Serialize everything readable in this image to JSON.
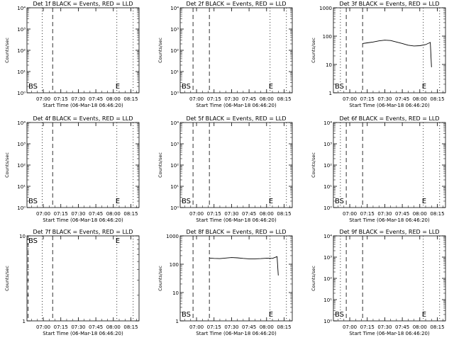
{
  "chart_data": [
    {
      "type": "line",
      "title": "Det 1f BLACK = Events, RED = LLD",
      "ylabel": "Counts/sec",
      "xlabel": "Start Time (06-Mar-18 06:46:20)",
      "yscale": "log",
      "yticks": [
        "10⁰",
        "10¹",
        "10²",
        "10³",
        "10⁴"
      ],
      "xticks": [
        "07:00",
        "07:15",
        "07:30",
        "07:45",
        "08:00",
        "08:15"
      ],
      "markers": [
        "BS",
        "E"
      ],
      "vlines": [
        {
          "style": "dotted",
          "x": "06:59"
        },
        {
          "style": "dashed",
          "x": "07:08"
        },
        {
          "style": "dotted",
          "x": "08:03"
        },
        {
          "style": "dotted",
          "x": "08:17"
        }
      ],
      "series": []
    },
    {
      "type": "line",
      "title": "Det 2f BLACK = Events, RED = LLD",
      "ylabel": "Counts/sec",
      "xlabel": "Start Time (06-Mar-18 06:46:20)",
      "yscale": "log",
      "yticks": [
        "10⁰",
        "10¹",
        "10²",
        "10³",
        "10⁴"
      ],
      "xticks": [
        "07:00",
        "07:15",
        "07:30",
        "07:45",
        "08:00",
        "08:15"
      ],
      "markers": [
        "BS",
        "E"
      ],
      "vlines": [
        {
          "style": "dashed",
          "x": "06:57"
        },
        {
          "style": "dashed",
          "x": "07:11"
        },
        {
          "style": "dotted",
          "x": "08:03"
        },
        {
          "style": "dotted",
          "x": "08:17"
        }
      ],
      "series": []
    },
    {
      "type": "line",
      "title": "Det 3f BLACK = Events, RED = LLD",
      "ylabel": "Counts/sec",
      "xlabel": "Start Time (06-Mar-18 06:46:20)",
      "yscale": "log",
      "yticks": [
        "1",
        "10",
        "100",
        "1000"
      ],
      "xticks": [
        "07:00",
        "07:15",
        "07:30",
        "07:45",
        "08:00",
        "08:15"
      ],
      "markers": [
        "BS",
        "E"
      ],
      "vlines": [
        {
          "style": "dotted",
          "x": "06:52"
        },
        {
          "style": "dashed",
          "x": "06:57"
        },
        {
          "style": "dashed",
          "x": "07:11"
        },
        {
          "style": "dotted",
          "x": "08:03"
        },
        {
          "style": "dotted",
          "x": "08:17"
        }
      ],
      "series": [
        {
          "x": [
            "07:11",
            "07:15",
            "07:20",
            "07:25",
            "07:30",
            "07:35",
            "07:40",
            "07:45",
            "07:50",
            "07:55",
            "08:00",
            "08:05",
            "08:09",
            "08:10"
          ],
          "values": [
            55,
            58,
            62,
            68,
            72,
            70,
            62,
            55,
            48,
            45,
            46,
            50,
            60,
            8
          ]
        }
      ]
    },
    {
      "type": "line",
      "title": "Det 4f BLACK = Events, RED = LLD",
      "ylabel": "Counts/sec",
      "xlabel": "Start Time (06-Mar-18 06:46:20)",
      "yscale": "log",
      "yticks": [
        "10⁰",
        "10¹",
        "10²",
        "10³",
        "10⁴"
      ],
      "xticks": [
        "07:00",
        "07:15",
        "07:30",
        "07:45",
        "08:00",
        "08:15"
      ],
      "markers": [
        "BS",
        "E"
      ],
      "vlines": [
        {
          "style": "dotted",
          "x": "06:59"
        },
        {
          "style": "dashed",
          "x": "07:08"
        },
        {
          "style": "dotted",
          "x": "08:03"
        },
        {
          "style": "dotted",
          "x": "08:17"
        }
      ],
      "series": []
    },
    {
      "type": "line",
      "title": "Det 5f BLACK = Events, RED = LLD",
      "ylabel": "Counts/sec",
      "xlabel": "Start Time (06-Mar-18 06:46:20)",
      "yscale": "log",
      "yticks": [
        "10⁰",
        "10¹",
        "10²",
        "10³",
        "10⁴"
      ],
      "xticks": [
        "07:00",
        "07:15",
        "07:30",
        "07:45",
        "08:00",
        "08:15"
      ],
      "markers": [
        "BS",
        "E"
      ],
      "vlines": [
        {
          "style": "dashed",
          "x": "06:57"
        },
        {
          "style": "dashed",
          "x": "07:11"
        },
        {
          "style": "dotted",
          "x": "08:03"
        },
        {
          "style": "dotted",
          "x": "08:17"
        }
      ],
      "series": []
    },
    {
      "type": "line",
      "title": "Det 6f BLACK = Events, RED = LLD",
      "ylabel": "Counts/sec",
      "xlabel": "Start Time (06-Mar-18 06:46:20)",
      "yscale": "log",
      "yticks": [
        "10⁰",
        "10¹",
        "10²",
        "10³",
        "10⁴"
      ],
      "xticks": [
        "07:00",
        "07:15",
        "07:30",
        "07:45",
        "08:00",
        "08:15"
      ],
      "markers": [
        "BS",
        "E"
      ],
      "vlines": [
        {
          "style": "dotted",
          "x": "06:52"
        },
        {
          "style": "dashed",
          "x": "06:57"
        },
        {
          "style": "dashed",
          "x": "07:11"
        },
        {
          "style": "dotted",
          "x": "08:03"
        },
        {
          "style": "dotted",
          "x": "08:17"
        }
      ],
      "series": []
    },
    {
      "type": "line",
      "title": "Det 7f BLACK = Events, RED = LLD",
      "ylabel": "Counts/sec",
      "xlabel": "Start Time (06-Mar-18 06:46:20)",
      "yscale": "log",
      "yticks": [
        "1",
        "10"
      ],
      "xticks": [
        "07:00",
        "07:15",
        "07:30",
        "07:45",
        "08:00",
        "08:15"
      ],
      "markers": [
        "BS",
        "E"
      ],
      "vlines": [
        {
          "style": "dashed",
          "x": "06:47"
        },
        {
          "style": "dotted",
          "x": "06:59"
        },
        {
          "style": "dashed",
          "x": "07:08"
        },
        {
          "style": "dotted",
          "x": "08:03"
        },
        {
          "style": "dotted",
          "x": "08:17"
        }
      ],
      "series": []
    },
    {
      "type": "line",
      "title": "Det 8f BLACK = Events, RED = LLD",
      "ylabel": "Counts/sec",
      "xlabel": "Start Time (06-Mar-18 06:46:20)",
      "yscale": "log",
      "yticks": [
        "1",
        "10",
        "100",
        "1000"
      ],
      "xticks": [
        "07:00",
        "07:15",
        "07:30",
        "07:45",
        "08:00",
        "08:15"
      ],
      "markers": [
        "BS",
        "E"
      ],
      "vlines": [
        {
          "style": "dashed",
          "x": "06:57"
        },
        {
          "style": "dashed",
          "x": "07:11"
        },
        {
          "style": "dotted",
          "x": "08:03"
        },
        {
          "style": "dotted",
          "x": "08:17"
        }
      ],
      "series": [
        {
          "x": [
            "07:11",
            "07:15",
            "07:20",
            "07:25",
            "07:30",
            "07:35",
            "07:40",
            "07:45",
            "07:50",
            "07:55",
            "08:00",
            "08:05",
            "08:09",
            "08:10"
          ],
          "values": [
            165,
            160,
            158,
            165,
            172,
            168,
            160,
            155,
            155,
            158,
            162,
            160,
            185,
            40
          ]
        }
      ]
    },
    {
      "type": "line",
      "title": "Det 9f BLACK = Events, RED = LLD",
      "ylabel": "Counts/sec",
      "xlabel": "Start Time (06-Mar-18 06:46:20)",
      "yscale": "log",
      "yticks": [
        "10⁰",
        "10¹",
        "10²",
        "10³",
        "10⁴"
      ],
      "xticks": [
        "07:00",
        "07:15",
        "07:30",
        "07:45",
        "08:00",
        "08:15"
      ],
      "markers": [
        "BS",
        "E"
      ],
      "vlines": [
        {
          "style": "dotted",
          "x": "06:52"
        },
        {
          "style": "dashed",
          "x": "06:57"
        },
        {
          "style": "dashed",
          "x": "07:11"
        },
        {
          "style": "dotted",
          "x": "08:03"
        },
        {
          "style": "dotted",
          "x": "08:17"
        }
      ],
      "series": []
    }
  ]
}
